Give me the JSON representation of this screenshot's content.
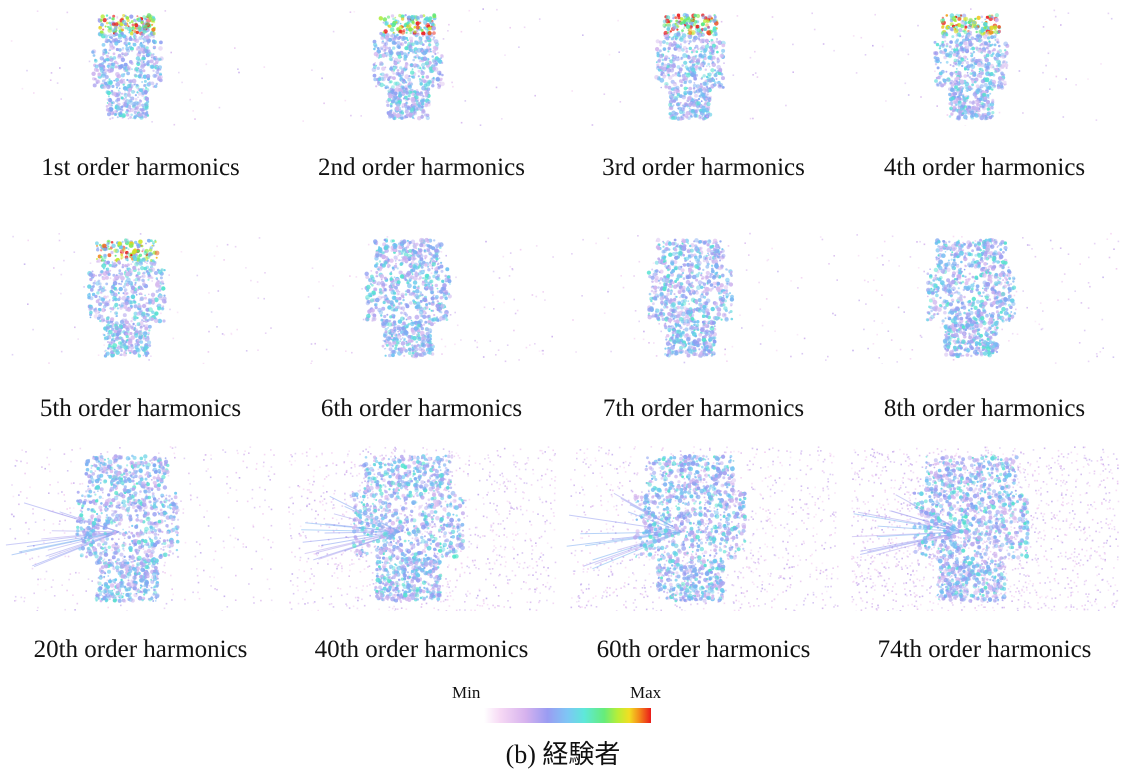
{
  "panels": [
    {
      "label": "1st order harmonics",
      "spread": 0.35,
      "background": 0.02
    },
    {
      "label": "2nd order harmonics",
      "spread": 0.35,
      "background": 0.02
    },
    {
      "label": "3rd order harmonics",
      "spread": 0.33,
      "background": 0.02
    },
    {
      "label": "4th order harmonics",
      "spread": 0.4,
      "background": 0.03
    },
    {
      "label": "5th order harmonics",
      "spread": 0.45,
      "background": 0.04
    },
    {
      "label": "6th order harmonics",
      "spread": 0.55,
      "background": 0.05
    },
    {
      "label": "7th order harmonics",
      "spread": 0.55,
      "background": 0.05
    },
    {
      "label": "8th order harmonics",
      "spread": 0.6,
      "background": 0.07
    },
    {
      "label": "20th order harmonics",
      "spread": 0.8,
      "background": 0.2
    },
    {
      "label": "40th order harmonics",
      "spread": 0.9,
      "background": 0.55
    },
    {
      "label": "60th order harmonics",
      "spread": 0.9,
      "background": 0.5
    },
    {
      "label": "74th order harmonics",
      "spread": 0.95,
      "background": 0.8
    }
  ],
  "colorbar": {
    "min_label": "Min",
    "max_label": "Max",
    "colors": [
      "#ffffff",
      "#f4d2f2",
      "#c9b0ee",
      "#8c9cf2",
      "#6cc8f2",
      "#4fe8c8",
      "#5ee86a",
      "#c8ec2a",
      "#f4c21a",
      "#ea1a1a"
    ]
  },
  "caption": "(b) 経験者"
}
